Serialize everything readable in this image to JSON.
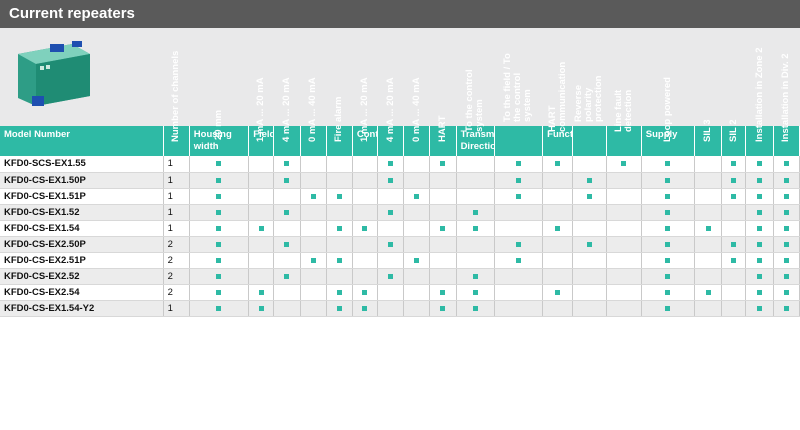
{
  "title": "Current repeaters",
  "colors": {
    "accent": "#2ebaa5",
    "banner": "#5a5a5a",
    "mark": "#2ebaa5"
  },
  "groups": [
    "Model Number",
    "Housing width",
    "Field Side",
    "Control Side",
    "Transmission Direction",
    "Functions",
    "Supply"
  ],
  "columns": [
    "Number of channels",
    "20 mm",
    "1 mA ... 20 mA",
    "4 mA ... 20 mA",
    "0 mA ... 40 mA",
    "Fire alarm",
    "1 mA ... 20 mA",
    "4 mA ... 20 mA",
    "0 mA ... 40 mA",
    "HART",
    "To the control system",
    "To the field / To the control system",
    "HART communication",
    "Reverse polarity protection",
    "Line fault detection",
    "Loop powered",
    "SIL 3",
    "SIL 2",
    "Installation in Zone 2",
    "Installation in Div. 2"
  ],
  "rows": [
    {
      "model": "KFD0-SCS-EX1.55",
      "channels": "1",
      "marks": [
        1,
        0,
        1,
        0,
        0,
        0,
        1,
        0,
        1,
        0,
        1,
        1,
        0,
        1,
        1,
        0,
        1,
        1,
        1
      ]
    },
    {
      "model": "KFD0-CS-EX1.50P",
      "channels": "1",
      "marks": [
        1,
        0,
        1,
        0,
        0,
        0,
        1,
        0,
        0,
        0,
        1,
        0,
        1,
        0,
        1,
        0,
        1,
        1,
        1
      ]
    },
    {
      "model": "KFD0-CS-EX1.51P",
      "channels": "1",
      "marks": [
        1,
        0,
        0,
        1,
        1,
        0,
        0,
        1,
        0,
        0,
        1,
        0,
        1,
        0,
        1,
        0,
        1,
        1,
        1
      ]
    },
    {
      "model": "KFD0-CS-EX1.52",
      "channels": "1",
      "marks": [
        1,
        0,
        1,
        0,
        0,
        0,
        1,
        0,
        0,
        1,
        0,
        0,
        0,
        0,
        1,
        0,
        0,
        1,
        1
      ]
    },
    {
      "model": "KFD0-CS-EX1.54",
      "channels": "1",
      "marks": [
        1,
        1,
        0,
        0,
        1,
        1,
        0,
        0,
        1,
        1,
        0,
        1,
        0,
        0,
        1,
        1,
        0,
        1,
        1
      ]
    },
    {
      "model": "KFD0-CS-EX2.50P",
      "channels": "2",
      "marks": [
        1,
        0,
        1,
        0,
        0,
        0,
        1,
        0,
        0,
        0,
        1,
        0,
        1,
        0,
        1,
        0,
        1,
        1,
        1
      ]
    },
    {
      "model": "KFD0-CS-EX2.51P",
      "channels": "2",
      "marks": [
        1,
        0,
        0,
        1,
        1,
        0,
        0,
        1,
        0,
        0,
        1,
        0,
        0,
        0,
        1,
        0,
        1,
        1,
        1
      ]
    },
    {
      "model": "KFD0-CS-EX2.52",
      "channels": "2",
      "marks": [
        1,
        0,
        1,
        0,
        0,
        0,
        1,
        0,
        0,
        1,
        0,
        0,
        0,
        0,
        1,
        0,
        0,
        1,
        1
      ]
    },
    {
      "model": "KFD0-CS-EX2.54",
      "channels": "2",
      "marks": [
        1,
        1,
        0,
        0,
        1,
        1,
        0,
        0,
        1,
        1,
        0,
        1,
        0,
        0,
        1,
        1,
        0,
        1,
        1
      ]
    },
    {
      "model": "KFD0-CS-EX1.54-Y2",
      "channels": "1",
      "marks": [
        1,
        1,
        0,
        0,
        1,
        1,
        0,
        0,
        1,
        1,
        0,
        0,
        0,
        0,
        1,
        0,
        0,
        1,
        1
      ]
    }
  ]
}
